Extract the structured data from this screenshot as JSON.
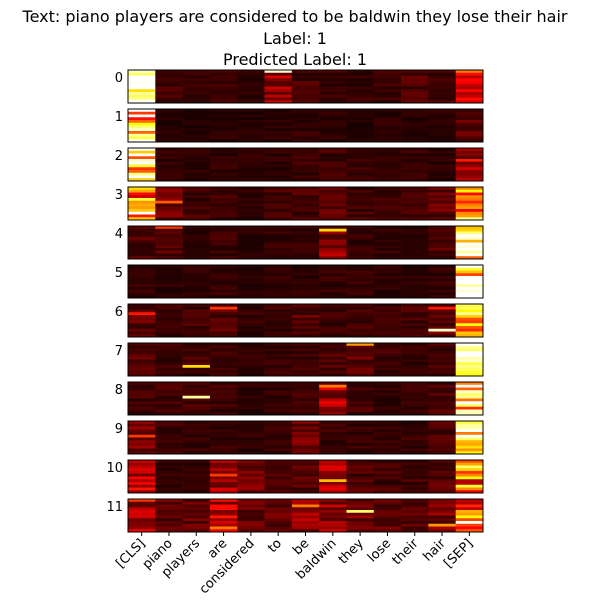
{
  "chart_data": {
    "type": "heatmap",
    "title_lines": [
      "Text: piano players are considered to be baldwin they lose their hair",
      "Label: 1",
      "Predicted Label: 1"
    ],
    "colormap": "hot",
    "value_range": [
      0,
      1
    ],
    "tokens": [
      "[CLS]",
      "piano",
      "players",
      "are",
      "considered",
      "to",
      "be",
      "baldwin",
      "they",
      "lose",
      "their",
      "hair",
      "[SEP]"
    ],
    "layers": [
      "0",
      "1",
      "2",
      "3",
      "4",
      "5",
      "6",
      "7",
      "8",
      "9",
      "10",
      "11"
    ],
    "rows_per_layer": 12,
    "note_rows": "each layer panel shows one row per attention head; head-level values estimated from color intensity",
    "panels": [
      {
        "layer": "0",
        "token_mean": [
          0.78,
          0.08,
          0.06,
          0.07,
          0.05,
          0.22,
          0.09,
          0.07,
          0.06,
          0.07,
          0.1,
          0.08,
          0.25
        ],
        "peaks": [
          [
            0,
            0,
            0.95
          ],
          [
            3,
            0,
            1.0
          ],
          [
            8,
            0,
            0.9
          ],
          [
            0,
            5,
            0.95
          ],
          [
            0,
            12,
            0.55
          ]
        ]
      },
      {
        "layer": "1",
        "token_mean": [
          0.85,
          0.04,
          0.04,
          0.05,
          0.04,
          0.05,
          0.06,
          0.05,
          0.04,
          0.05,
          0.05,
          0.05,
          0.12
        ],
        "peaks": [
          [
            0,
            0,
            1.0
          ],
          [
            5,
            0,
            0.75
          ],
          [
            9,
            0,
            0.9
          ],
          [
            11,
            0,
            1.0
          ]
        ]
      },
      {
        "layer": "2",
        "token_mean": [
          0.88,
          0.05,
          0.05,
          0.06,
          0.05,
          0.06,
          0.07,
          0.08,
          0.06,
          0.05,
          0.06,
          0.05,
          0.22
        ],
        "peaks": [
          [
            0,
            0,
            1.0
          ],
          [
            4,
            0,
            0.95
          ],
          [
            10,
            0,
            1.0
          ],
          [
            4,
            12,
            0.4
          ]
        ]
      },
      {
        "layer": "3",
        "token_mean": [
          0.55,
          0.14,
          0.08,
          0.08,
          0.06,
          0.08,
          0.09,
          0.12,
          0.08,
          0.08,
          0.08,
          0.12,
          0.6
        ],
        "peaks": [
          [
            0,
            0,
            0.7
          ],
          [
            4,
            0,
            0.8
          ],
          [
            9,
            0,
            1.0
          ],
          [
            1,
            12,
            0.75
          ],
          [
            6,
            12,
            0.55
          ],
          [
            10,
            12,
            0.6
          ],
          [
            5,
            1,
            0.5
          ]
        ]
      },
      {
        "layer": "4",
        "token_mean": [
          0.1,
          0.1,
          0.06,
          0.07,
          0.05,
          0.06,
          0.06,
          0.18,
          0.06,
          0.06,
          0.05,
          0.1,
          0.8
        ],
        "peaks": [
          [
            0,
            1,
            0.45
          ],
          [
            1,
            7,
            0.7
          ],
          [
            4,
            12,
            0.95
          ],
          [
            6,
            12,
            1.0
          ],
          [
            9,
            12,
            0.9
          ]
        ]
      },
      {
        "layer": "5",
        "token_mean": [
          0.06,
          0.05,
          0.05,
          0.06,
          0.05,
          0.06,
          0.05,
          0.06,
          0.06,
          0.05,
          0.05,
          0.06,
          0.85
        ],
        "peaks": [
          [
            1,
            12,
            0.8
          ],
          [
            4,
            12,
            1.0
          ],
          [
            7,
            12,
            0.9
          ],
          [
            10,
            12,
            1.0
          ]
        ]
      },
      {
        "layer": "6",
        "token_mean": [
          0.12,
          0.07,
          0.08,
          0.1,
          0.06,
          0.07,
          0.12,
          0.08,
          0.08,
          0.07,
          0.08,
          0.12,
          0.55
        ],
        "peaks": [
          [
            3,
            0,
            0.4
          ],
          [
            1,
            3,
            0.45
          ],
          [
            1,
            11,
            0.4
          ],
          [
            9,
            11,
            0.95
          ],
          [
            3,
            12,
            0.9
          ],
          [
            7,
            12,
            0.75
          ]
        ]
      },
      {
        "layer": "7",
        "token_mean": [
          0.12,
          0.07,
          0.08,
          0.06,
          0.06,
          0.06,
          0.07,
          0.09,
          0.12,
          0.07,
          0.06,
          0.08,
          0.8
        ],
        "peaks": [
          [
            8,
            2,
            0.7
          ],
          [
            0,
            8,
            0.6
          ],
          [
            1,
            12,
            0.9
          ],
          [
            3,
            12,
            1.0
          ],
          [
            6,
            12,
            0.95
          ],
          [
            10,
            12,
            0.8
          ]
        ]
      },
      {
        "layer": "8",
        "token_mean": [
          0.08,
          0.08,
          0.1,
          0.07,
          0.05,
          0.06,
          0.07,
          0.22,
          0.08,
          0.06,
          0.06,
          0.09,
          0.8
        ],
        "peaks": [
          [
            5,
            2,
            0.9
          ],
          [
            1,
            7,
            0.55
          ],
          [
            1,
            12,
            1.0
          ],
          [
            3,
            12,
            0.95
          ],
          [
            8,
            12,
            0.85
          ]
        ]
      },
      {
        "layer": "9",
        "token_mean": [
          0.16,
          0.07,
          0.06,
          0.06,
          0.05,
          0.06,
          0.14,
          0.07,
          0.07,
          0.06,
          0.07,
          0.09,
          0.75
        ],
        "peaks": [
          [
            5,
            0,
            0.45
          ],
          [
            1,
            12,
            0.9
          ],
          [
            3,
            12,
            1.0
          ],
          [
            6,
            12,
            0.85
          ],
          [
            9,
            12,
            0.7
          ]
        ]
      },
      {
        "layer": "10",
        "token_mean": [
          0.26,
          0.06,
          0.06,
          0.22,
          0.14,
          0.1,
          0.1,
          0.22,
          0.1,
          0.08,
          0.08,
          0.1,
          0.55
        ],
        "peaks": [
          [
            5,
            3,
            0.45
          ],
          [
            7,
            7,
            0.65
          ],
          [
            2,
            12,
            0.85
          ],
          [
            6,
            12,
            0.75
          ],
          [
            9,
            12,
            0.8
          ]
        ]
      },
      {
        "layer": "11",
        "token_mean": [
          0.24,
          0.12,
          0.12,
          0.26,
          0.14,
          0.12,
          0.18,
          0.2,
          0.14,
          0.12,
          0.1,
          0.16,
          0.45
        ],
        "peaks": [
          [
            0,
            0,
            0.45
          ],
          [
            2,
            6,
            0.55
          ],
          [
            4,
            8,
            0.85
          ],
          [
            9,
            11,
            0.6
          ],
          [
            10,
            3,
            0.55
          ],
          [
            6,
            12,
            0.75
          ],
          [
            8,
            12,
            1.0
          ]
        ]
      }
    ]
  }
}
